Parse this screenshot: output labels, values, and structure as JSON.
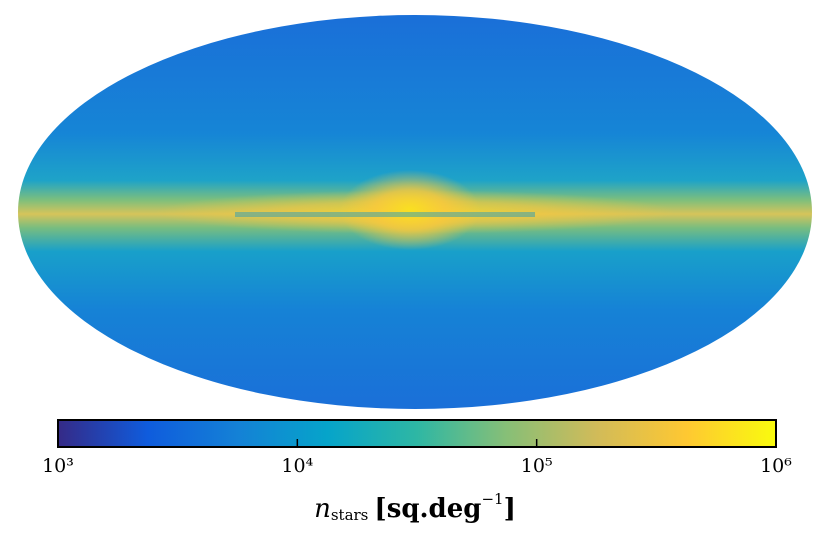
{
  "chart_data": {
    "type": "skymap",
    "colorbar": {
      "scale": "log",
      "lim": [
        1000,
        1000000
      ],
      "ticks": [
        {
          "value": 1000,
          "label": "10³"
        },
        {
          "value": 10000,
          "label": "10⁴"
        },
        {
          "value": 100000,
          "label": "10⁵"
        },
        {
          "value": 1000000,
          "label": "10⁶"
        }
      ],
      "colormap": [
        "#352a87",
        "#0f5cdd",
        "#1481d6",
        "#06a4ca",
        "#2eb7a4",
        "#87bf77",
        "#d1bb59",
        "#fec832",
        "#f9fb0e"
      ],
      "label": {
        "symbol": "n",
        "subscript": "stars",
        "unit": "[sq.deg",
        "exponent": "−1",
        "close": "]"
      }
    }
  }
}
